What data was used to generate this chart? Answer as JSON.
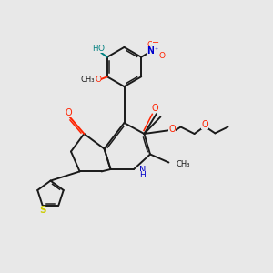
{
  "background_color": "#e8e8e8",
  "bond_color": "#1a1a1a",
  "oxygen_color": "#ff2200",
  "nitrogen_color": "#0000cc",
  "sulfur_color": "#cccc00",
  "teal_color": "#008080",
  "figsize": [
    3.0,
    3.0
  ],
  "dpi": 100,
  "xlim": [
    0,
    10
  ],
  "ylim": [
    0,
    10
  ]
}
